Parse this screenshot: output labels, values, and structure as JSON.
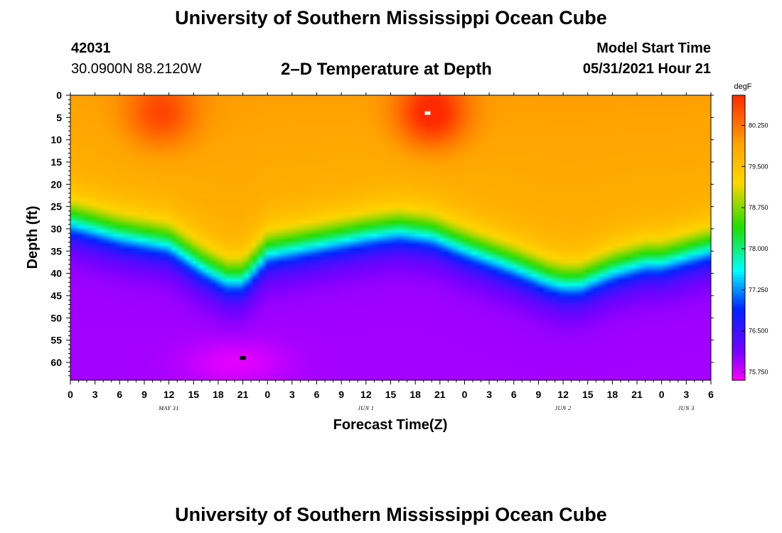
{
  "header": {
    "title": "University of Southern Mississippi Ocean Cube",
    "station_id": "42031",
    "station_location": "30.0900N  88.2120W",
    "plot_title": "2–D Temperature at Depth",
    "model_start_label": "Model Start Time",
    "model_start_time": "05/31/2021 Hour 21"
  },
  "footer": {
    "title": "University of Southern Mississippi Ocean Cube"
  },
  "chart_data": {
    "type": "heatmap",
    "title": "2–D Temperature at Depth",
    "xlabel": "Forecast Time(Z)",
    "ylabel": "Depth (ft)",
    "x_tick_labels": [
      "0",
      "3",
      "6",
      "9",
      "12",
      "15",
      "18",
      "21",
      "0",
      "3",
      "6",
      "9",
      "12",
      "15",
      "18",
      "21",
      "0",
      "3",
      "6",
      "9",
      "12",
      "15",
      "18",
      "21",
      "0",
      "3",
      "6"
    ],
    "x_hours_range": [
      0,
      78
    ],
    "date_labels": [
      {
        "text": "MAY 31",
        "hour": 12
      },
      {
        "text": "JUN 1",
        "hour": 36
      },
      {
        "text": "JUN 2",
        "hour": 60
      },
      {
        "text": "JUN 3",
        "hour": 75
      }
    ],
    "y_ticks": [
      0,
      5,
      10,
      15,
      20,
      25,
      30,
      35,
      40,
      45,
      50,
      55,
      60
    ],
    "ylim": [
      0,
      64
    ],
    "colorbar": {
      "unit": "degF",
      "labels": [
        "80.250",
        "79.500",
        "78.750",
        "78.000",
        "77.250",
        "76.500",
        "75.750"
      ],
      "range": [
        75.6,
        80.8
      ]
    },
    "colors": {
      "warmest": "#ff2a00",
      "warm": "#ffa500",
      "yellow": "#ffd700",
      "green": "#22dd00",
      "cyan": "#00ffff",
      "blue": "#0022ff",
      "violet": "#7a00ff",
      "magenta": "#ff00ff"
    },
    "thermocline": {
      "description": "depth (ft) of the ~78 degF isotherm at each forecast hour",
      "hours": [
        0,
        6,
        12,
        16,
        19,
        21,
        24,
        30,
        36,
        40,
        44,
        48,
        54,
        58,
        60,
        62,
        66,
        70,
        72,
        76,
        78
      ],
      "depth": [
        28,
        31,
        33,
        38,
        41,
        41,
        35,
        33,
        31,
        30,
        31,
        34,
        38,
        41,
        42,
        42,
        39,
        37,
        37,
        35,
        34
      ]
    },
    "hotspots": [
      {
        "hour": 11,
        "depth": 4,
        "temp": 80.5
      },
      {
        "hour": 44,
        "depth": 4,
        "temp": 80.8
      }
    ],
    "markers": [
      {
        "name": "surface-max-marker",
        "hour": 43.5,
        "depth": 4,
        "color": "#ffffff"
      },
      {
        "name": "bottom-min-marker",
        "hour": 21,
        "depth": 59,
        "color": "#000000"
      }
    ]
  }
}
